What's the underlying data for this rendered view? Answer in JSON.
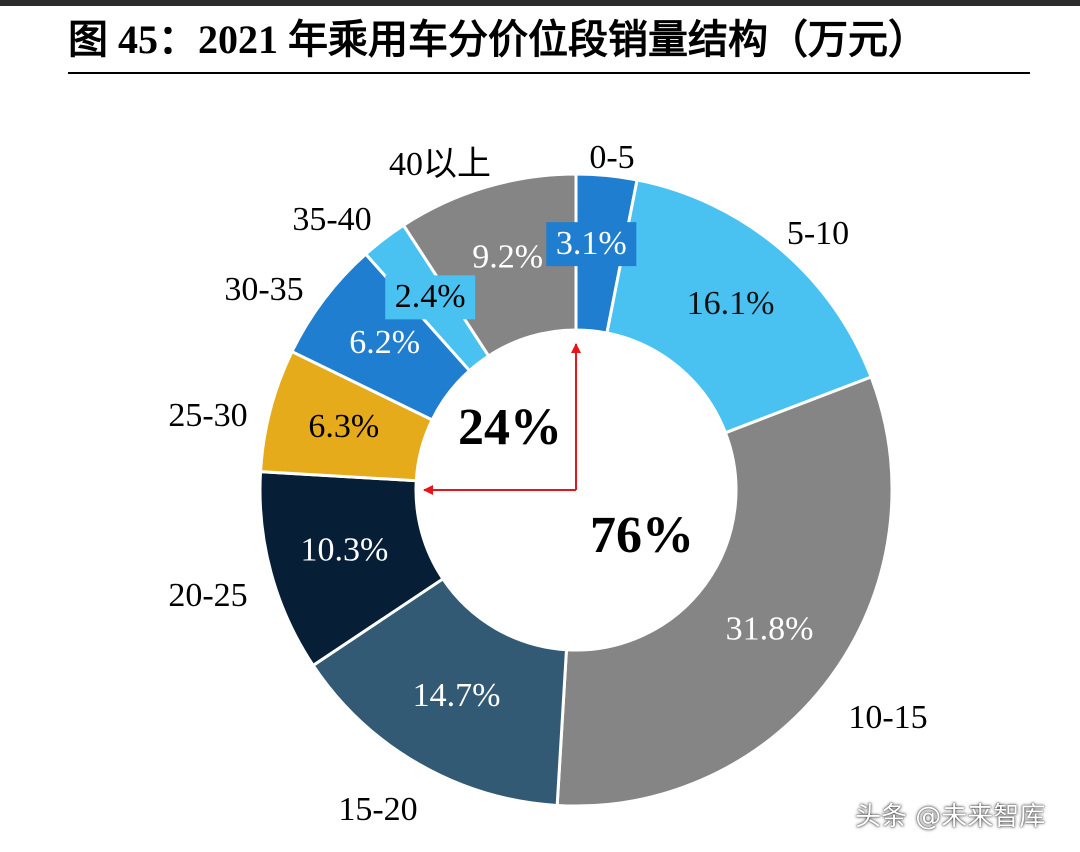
{
  "title": "图 45：2021 年乘用车分价位段销量结构（万元）",
  "watermark": "头条 @未来智库",
  "chart_data": {
    "type": "donut",
    "title": "2021 年乘用车分价位段销量结构（万元）",
    "unit": "万元",
    "slices": [
      {
        "category": "0-5",
        "value": 3.1,
        "label": "3.1%",
        "color": "#1f7ecf",
        "label_box": true
      },
      {
        "category": "5-10",
        "value": 16.1,
        "label": "16.1%",
        "color": "#4ac2f1",
        "label_box": false
      },
      {
        "category": "10-15",
        "value": 31.8,
        "label": "31.8%",
        "color": "#858585",
        "label_box": false
      },
      {
        "category": "15-20",
        "value": 14.7,
        "label": "14.7%",
        "color": "#325a74",
        "label_box": false
      },
      {
        "category": "20-25",
        "value": 10.3,
        "label": "10.3%",
        "color": "#061e36",
        "label_box": false
      },
      {
        "category": "25-30",
        "value": 6.3,
        "label": "6.3%",
        "color": "#e5ab1b",
        "label_box": false
      },
      {
        "category": "30-35",
        "value": 6.2,
        "label": "6.2%",
        "color": "#1f7ecf",
        "label_box": false
      },
      {
        "category": "35-40",
        "value": 2.4,
        "label": "2.4%",
        "color": "#4ac2f1",
        "label_box": true
      },
      {
        "category": "40以上",
        "value": 9.2,
        "label": "9.2%",
        "color": "#858585",
        "label_box": false
      }
    ],
    "center_annotations": [
      {
        "text": "24%",
        "covers": [
          "25-30",
          "30-35",
          "35-40",
          "40以上"
        ]
      },
      {
        "text": "76%",
        "covers": [
          "0-5",
          "5-10",
          "10-15",
          "15-20",
          "20-25"
        ]
      }
    ],
    "arrow_color": "#e8141c"
  }
}
